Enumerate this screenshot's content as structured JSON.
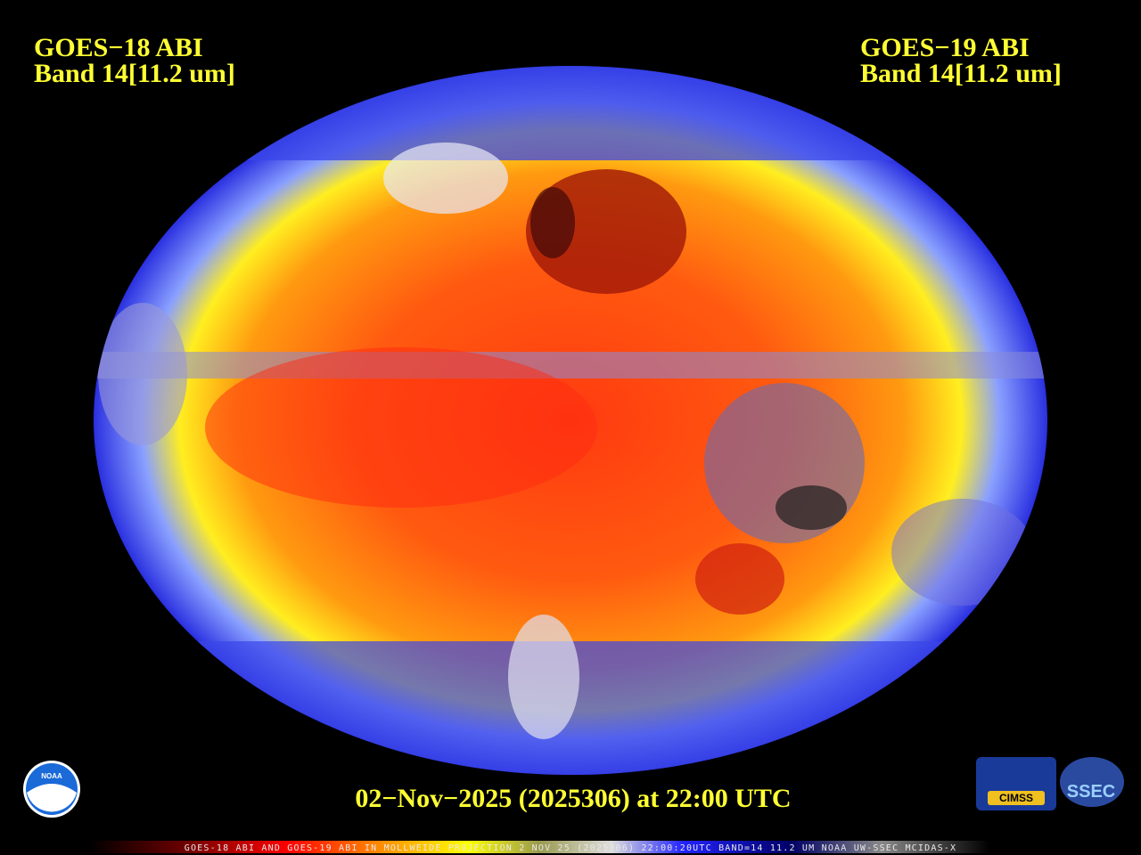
{
  "left_label": {
    "satellite": "GOES−18 ABI",
    "band": "Band 14[11.2 um]"
  },
  "right_label": {
    "satellite": "GOES−19 ABI",
    "band": "Band 14[11.2 um]"
  },
  "timestamp": "02−Nov−2025 (2025306) at 22:00 UTC",
  "logos": {
    "noaa": "NOAA",
    "cimss": "CIMSS",
    "ssec": "SSEC"
  },
  "footer": "GOES-18 ABI AND GOES-19 ABI IN MOLLWEIDE PROJECTION 2 NOV 25 (2025306) 22:00:20UTC BAND=14 11.2 UM NOAA UW-SSEC MCIDAS-X"
}
